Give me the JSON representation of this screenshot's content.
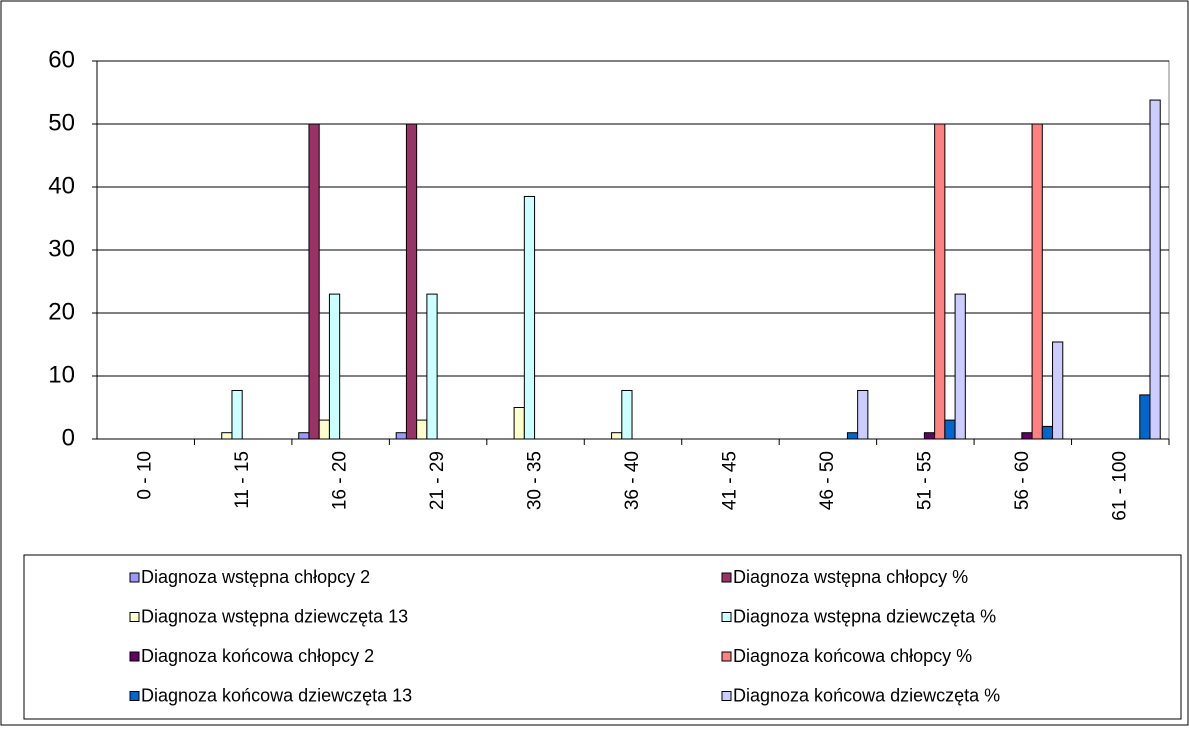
{
  "chart_data": {
    "type": "bar",
    "categories": [
      "0 - 10",
      "11 - 15",
      "16 - 20",
      "21 - 29",
      "30 - 35",
      "36 - 40",
      "41 - 45",
      "46 - 50",
      "51 - 55",
      "56 - 60",
      "61 - 100"
    ],
    "series": [
      {
        "name": "Diagnoza wstępna chłopcy 2",
        "color": "#9999ff",
        "values": [
          0,
          0,
          1,
          1,
          0,
          0,
          0,
          0,
          0,
          0,
          0
        ]
      },
      {
        "name": "Diagnoza wstępna chłopcy %",
        "color": "#993366",
        "values": [
          0,
          0,
          50,
          50,
          0,
          0,
          0,
          0,
          0,
          0,
          0
        ]
      },
      {
        "name": "Diagnoza wstępna dziewczęta 13",
        "color": "#ffffcc",
        "values": [
          0,
          1,
          3,
          3,
          5,
          1,
          0,
          0,
          0,
          0,
          0
        ]
      },
      {
        "name": "Diagnoza wstępna dziewczęta %",
        "color": "#ccffff",
        "values": [
          0,
          7.7,
          23,
          23,
          38.5,
          7.7,
          0,
          0,
          0,
          0,
          0
        ]
      },
      {
        "name": "Diagnoza końcowa chłopcy 2",
        "color": "#660066",
        "values": [
          0,
          0,
          0,
          0,
          0,
          0,
          0,
          0,
          1,
          1,
          0
        ]
      },
      {
        "name": "Diagnoza końcowa chłopcy %",
        "color": "#ff8080",
        "values": [
          0,
          0,
          0,
          0,
          0,
          0,
          0,
          0,
          50,
          50,
          0
        ]
      },
      {
        "name": "Diagnoza końcowa dziewczęta 13",
        "color": "#0066cc",
        "values": [
          0,
          0,
          0,
          0,
          0,
          0,
          0,
          1,
          3,
          2,
          7
        ]
      },
      {
        "name": "Diagnoza końcowa dziewczęta %",
        "color": "#ccccff",
        "values": [
          0,
          0,
          0,
          0,
          0,
          0,
          0,
          7.7,
          23,
          15.4,
          53.8
        ]
      }
    ],
    "ylim": [
      0,
      60
    ],
    "yticks": [
      0,
      10,
      20,
      30,
      40,
      50,
      60
    ],
    "grid": true
  }
}
